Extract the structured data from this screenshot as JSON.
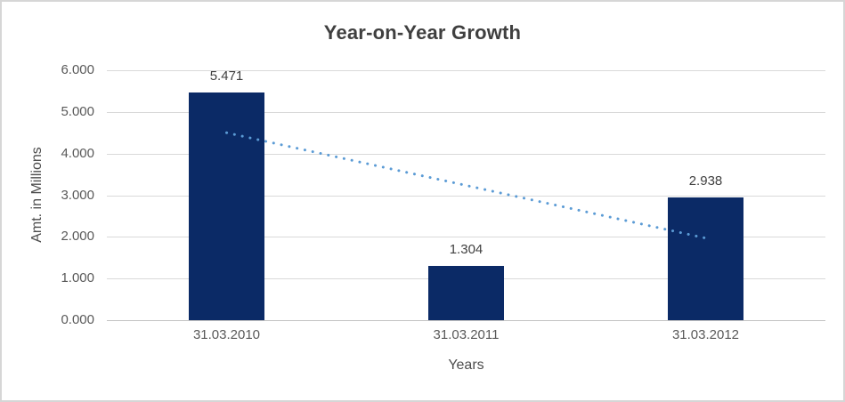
{
  "chart_data": {
    "type": "bar",
    "title": "Year-on-Year Growth",
    "xlabel": "Years",
    "ylabel": "Amt. in Millions",
    "categories": [
      "31.03.2010",
      "31.03.2011",
      "31.03.2012"
    ],
    "values": [
      5.471,
      1.304,
      2.938
    ],
    "value_labels": [
      "5.471",
      "1.304",
      "2.938"
    ],
    "ylim": [
      0,
      6
    ],
    "ytick_labels": [
      "0.000",
      "1.000",
      "2.000",
      "3.000",
      "4.000",
      "5.000",
      "6.000"
    ],
    "grid": true,
    "legend": "none",
    "trendline": {
      "type": "linear",
      "style": "dotted",
      "endpoint_categories": [
        0,
        2
      ],
      "endpoint_values": [
        4.5,
        1.97
      ]
    },
    "colors": {
      "bar": "#0b2a66",
      "trendline": "#5b9bd5",
      "gridline": "#d9d9d9",
      "axis_line": "#c3c3c3",
      "title": "#3f3f3f",
      "axis_title": "#4d4d4d",
      "tick_label": "#595959",
      "value_label": "#404040",
      "chart_border": "#d6d6d6",
      "background": "#ffffff"
    }
  }
}
